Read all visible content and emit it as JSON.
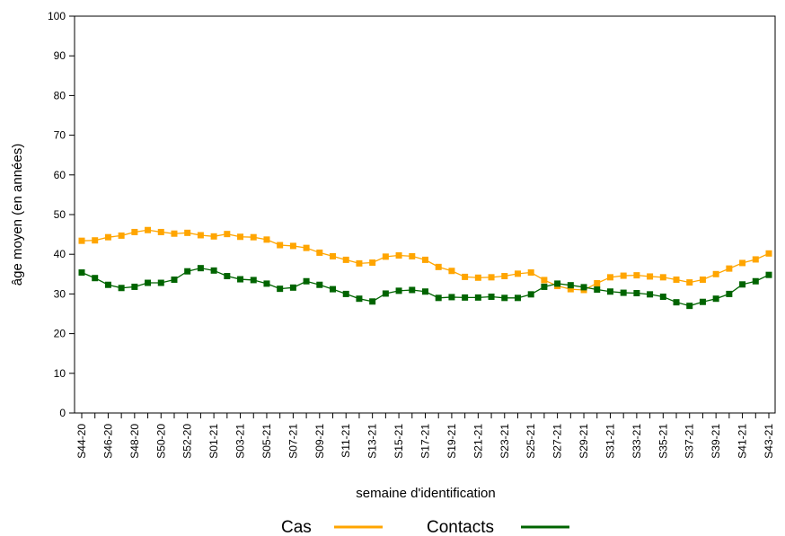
{
  "chart_data": {
    "type": "line",
    "xlabel": "semaine d'identification",
    "ylabel": "âge moyen (en années)",
    "ylim": [
      0,
      100
    ],
    "yticks": [
      0,
      10,
      20,
      30,
      40,
      50,
      60,
      70,
      80,
      90,
      100
    ],
    "grid": false,
    "legend_position": "bottom",
    "categories": [
      "S44-20",
      "S45-20",
      "S46-20",
      "S47-20",
      "S48-20",
      "S49-20",
      "S50-20",
      "S51-20",
      "S52-20",
      "S53-20",
      "S01-21",
      "S02-21",
      "S03-21",
      "S04-21",
      "S05-21",
      "S06-21",
      "S07-21",
      "S08-21",
      "S09-21",
      "S10-21",
      "S11-21",
      "S12-21",
      "S13-21",
      "S14-21",
      "S15-21",
      "S16-21",
      "S17-21",
      "S18-21",
      "S19-21",
      "S20-21",
      "S21-21",
      "S22-21",
      "S23-21",
      "S24-21",
      "S25-21",
      "S26-21",
      "S27-21",
      "S28-21",
      "S29-21",
      "S30-21",
      "S31-21",
      "S32-21",
      "S33-21",
      "S34-21",
      "S35-21",
      "S36-21",
      "S37-21",
      "S38-21",
      "S39-21",
      "S40-21",
      "S41-21",
      "S42-21",
      "S43-21"
    ],
    "xtick_labels": [
      "S44-20",
      "S46-20",
      "S48-20",
      "S50-20",
      "S52-20",
      "S01-21",
      "S03-21",
      "S05-21",
      "S07-21",
      "S09-21",
      "S11-21",
      "S13-21",
      "S15-21",
      "S17-21",
      "S19-21",
      "S21-21",
      "S23-21",
      "S25-21",
      "S27-21",
      "S29-21",
      "S31-21",
      "S33-21",
      "S35-21",
      "S37-21",
      "S39-21",
      "S41-21",
      "S43-21"
    ],
    "series": [
      {
        "name": "Cas",
        "color": "#FFA500",
        "values": [
          43.4,
          43.5,
          44.3,
          44.7,
          45.6,
          46.1,
          45.6,
          45.2,
          45.4,
          44.8,
          44.5,
          45.1,
          44.4,
          44.3,
          43.7,
          42.3,
          42.1,
          41.6,
          40.4,
          39.5,
          38.6,
          37.7,
          37.9,
          39.4,
          39.7,
          39.5,
          38.6,
          36.8,
          35.8,
          34.3,
          34.1,
          34.2,
          34.5,
          35.1,
          35.4,
          33.5,
          32.0,
          31.2,
          31.0,
          32.7,
          34.2,
          34.6,
          34.7,
          34.4,
          34.2,
          33.6,
          32.9,
          33.6,
          35.0,
          36.4,
          37.8,
          38.7,
          40.2
        ]
      },
      {
        "name": "Contacts",
        "color": "#006400",
        "values": [
          35.4,
          34.0,
          32.3,
          31.5,
          31.8,
          32.8,
          32.8,
          33.6,
          35.7,
          36.5,
          35.9,
          34.5,
          33.7,
          33.5,
          32.6,
          31.3,
          31.6,
          33.2,
          32.3,
          31.2,
          30.0,
          28.8,
          28.1,
          30.1,
          30.8,
          31.0,
          30.6,
          29.0,
          29.2,
          29.1,
          29.1,
          29.3,
          29.0,
          29.0,
          29.9,
          31.8,
          32.6,
          32.2,
          31.7,
          31.1,
          30.6,
          30.3,
          30.2,
          29.9,
          29.3,
          27.9,
          27.0,
          28.0,
          28.8,
          30.0,
          32.4,
          33.2,
          34.8
        ]
      }
    ]
  }
}
